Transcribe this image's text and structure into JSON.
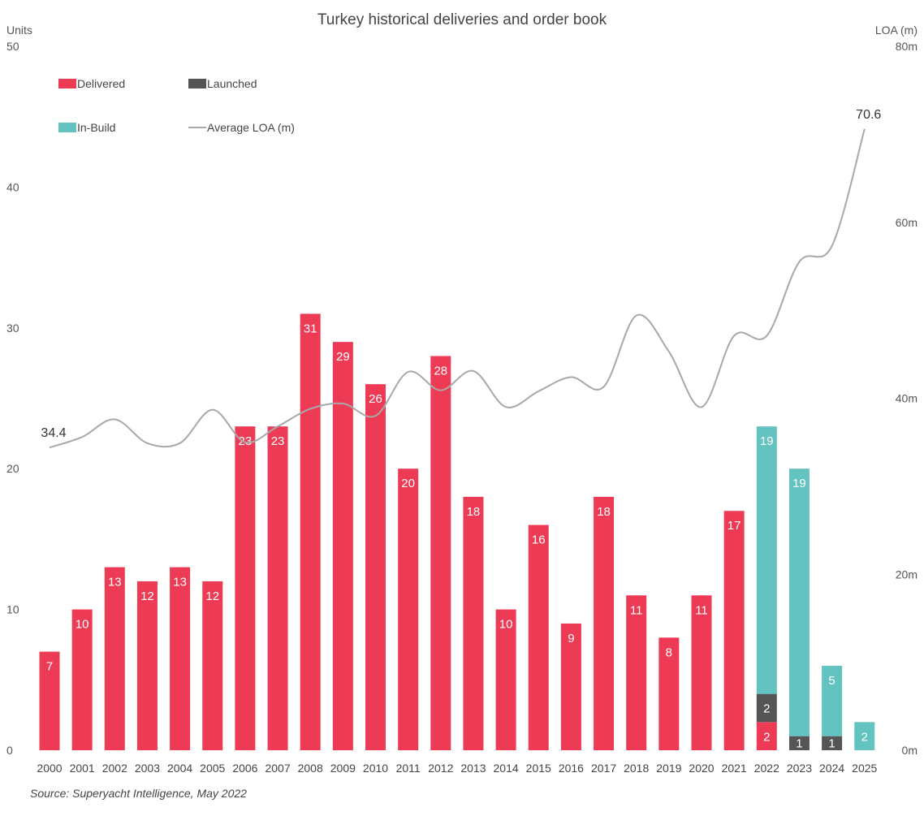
{
  "chart_data": {
    "type": "bar",
    "title": "Turkey historical deliveries and order book",
    "ylabel": "Units",
    "y2label": "LOA (m)",
    "ylim": [
      0,
      50
    ],
    "y2lim": [
      0,
      80
    ],
    "yticks": [
      "0",
      "10",
      "20",
      "30",
      "40",
      "50"
    ],
    "y2ticks": [
      "0m",
      "20m",
      "40m",
      "60m",
      "80m"
    ],
    "stacked": true,
    "grid": false,
    "legend_position": "top-left",
    "categories": [
      "2000",
      "2001",
      "2002",
      "2003",
      "2004",
      "2005",
      "2006",
      "2007",
      "2008",
      "2009",
      "2010",
      "2011",
      "2012",
      "2013",
      "2014",
      "2015",
      "2016",
      "2017",
      "2018",
      "2019",
      "2020",
      "2021",
      "2022",
      "2023",
      "2024",
      "2025"
    ],
    "series": [
      {
        "name": "Delivered",
        "color": "#ee3b55",
        "values": [
          7,
          10,
          13,
          12,
          13,
          12,
          23,
          23,
          31,
          29,
          26,
          20,
          28,
          18,
          10,
          16,
          9,
          18,
          11,
          8,
          11,
          17,
          2,
          0,
          0,
          0
        ]
      },
      {
        "name": "Launched",
        "color": "#555558",
        "values": [
          0,
          0,
          0,
          0,
          0,
          0,
          0,
          0,
          0,
          0,
          0,
          0,
          0,
          0,
          0,
          0,
          0,
          0,
          0,
          0,
          0,
          0,
          2,
          1,
          1,
          0
        ]
      },
      {
        "name": "In-Build",
        "color": "#62c3c0",
        "values": [
          0,
          0,
          0,
          0,
          0,
          0,
          0,
          0,
          0,
          0,
          0,
          0,
          0,
          0,
          0,
          0,
          0,
          0,
          0,
          0,
          0,
          0,
          19,
          19,
          5,
          2
        ]
      }
    ],
    "line": {
      "name": "Average LOA (m)",
      "axis": "right",
      "color": "#a8a8a8",
      "values": [
        34.4,
        35.6,
        37.6,
        34.9,
        34.9,
        38.7,
        35.0,
        36.8,
        38.8,
        39.4,
        38.0,
        43.0,
        40.9,
        43.1,
        39.0,
        40.8,
        42.4,
        41.3,
        49.4,
        45.3,
        39.0,
        47.1,
        47.1,
        55.5,
        57.3,
        70.6
      ]
    },
    "annotations": [
      {
        "text": "34.4",
        "category": "2000"
      },
      {
        "text": "70.6",
        "category": "2025"
      }
    ]
  },
  "source": "Source: Superyacht Intelligence, May 2022"
}
